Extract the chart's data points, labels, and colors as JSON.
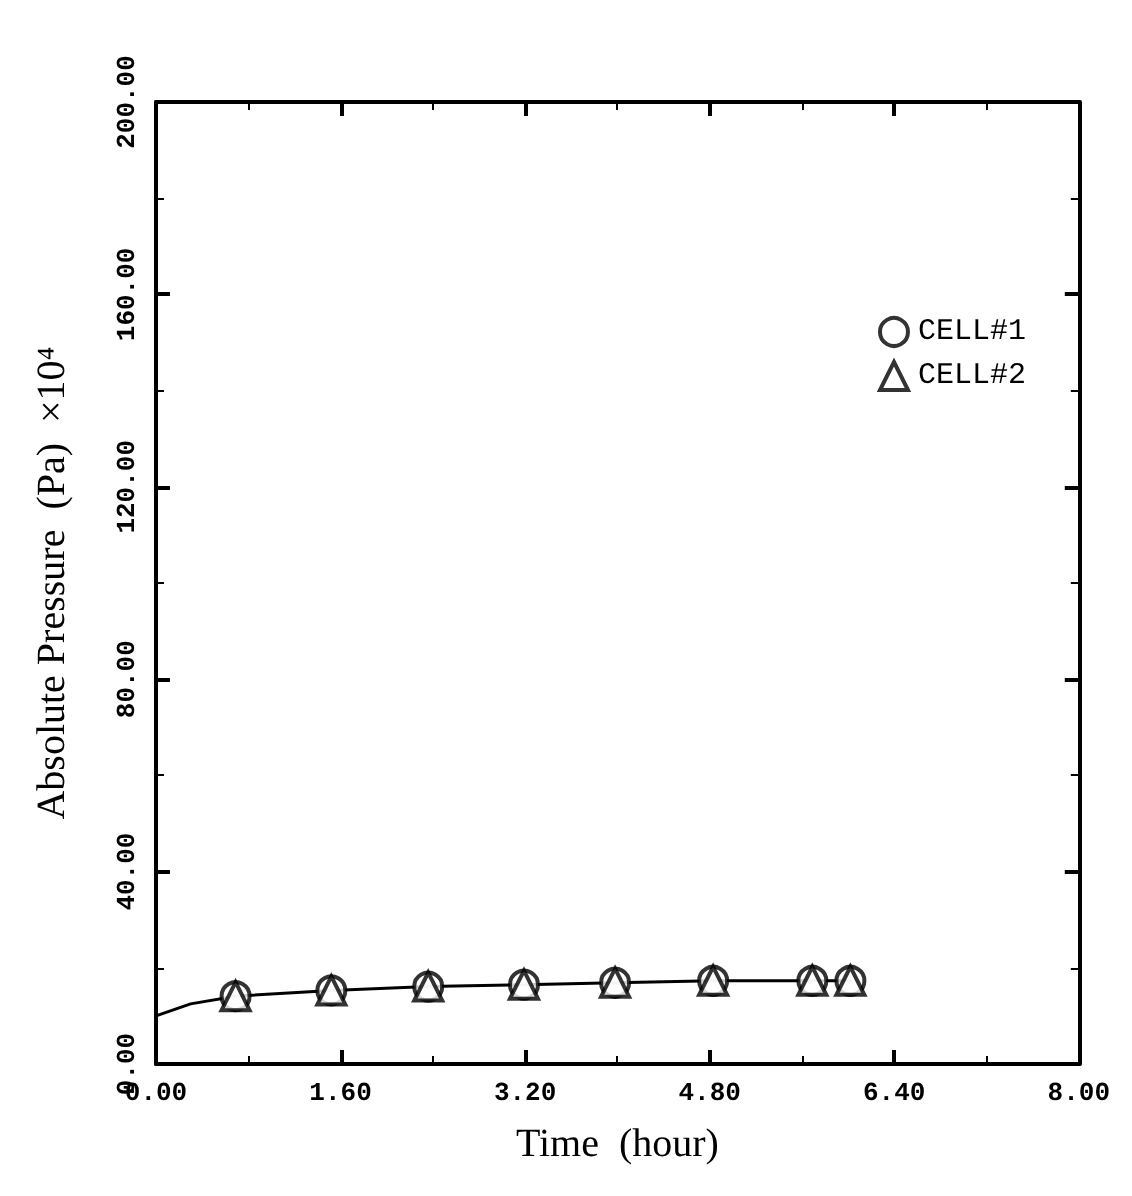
{
  "chart_data": {
    "type": "scatter",
    "xlabel": "Time  (hour)",
    "ylabel": "Absolute Pressure  (Pa)  ×10⁴",
    "xlim": [
      0,
      8
    ],
    "xticks": [
      {
        "value": 0,
        "label": "0.00"
      },
      {
        "value": 1.6,
        "label": "1.60"
      },
      {
        "value": 3.2,
        "label": "3.20"
      },
      {
        "value": 4.8,
        "label": "4.80"
      },
      {
        "value": 6.4,
        "label": "6.40"
      },
      {
        "value": 8,
        "label": "8.00"
      }
    ],
    "ylim": [
      0,
      200
    ],
    "yticks": [
      {
        "value": 0,
        "label": "0.00"
      },
      {
        "value": 40,
        "label": "40.00"
      },
      {
        "value": 80,
        "label": "80.00"
      },
      {
        "value": 120,
        "label": "120.00"
      },
      {
        "value": 160,
        "label": "160.00"
      },
      {
        "value": 200,
        "label": "200.00"
      }
    ],
    "grid": false,
    "legend": "top right",
    "series": [
      {
        "name": "CELL#1",
        "color": "#000000",
        "marker": "circle",
        "x": [
          0.69,
          1.52,
          2.36,
          3.19,
          3.98,
          4.83,
          5.69,
          6.02
        ],
        "values": [
          14.1,
          15.3,
          16.1,
          16.5,
          16.9,
          17.3,
          17.3,
          17.3
        ]
      },
      {
        "name": "CELL#2",
        "color": "#000000",
        "marker": "triangle",
        "x": [
          0.69,
          1.52,
          2.36,
          3.19,
          3.98,
          4.83,
          5.69,
          6.02
        ],
        "values": [
          14.1,
          15.3,
          16.1,
          16.5,
          16.9,
          17.3,
          17.3,
          17.3
        ]
      },
      {
        "type": "line",
        "color": "#000000",
        "marker": "none",
        "line_style": "solid",
        "x": [
          0,
          0.3,
          0.69,
          1.52,
          2.36,
          3.19,
          3.98,
          4.83,
          5.69,
          6.02
        ],
        "values": [
          10,
          12.5,
          14.1,
          15.3,
          16.1,
          16.5,
          16.9,
          17.3,
          17.3,
          17.3
        ]
      }
    ]
  }
}
